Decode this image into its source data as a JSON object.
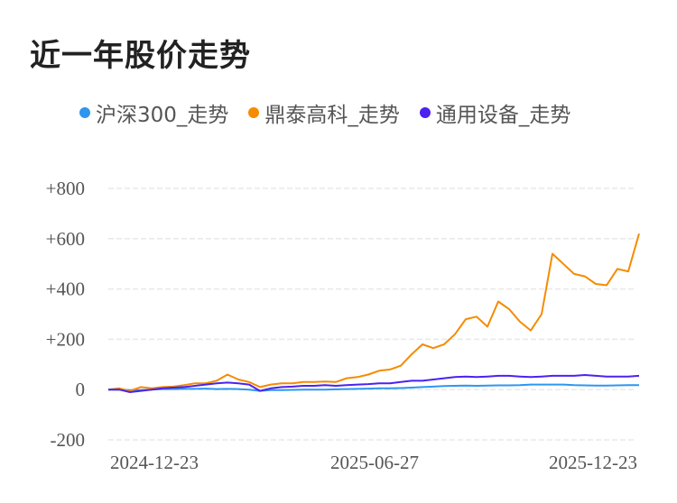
{
  "title": "近一年股价走势",
  "chart_data": {
    "type": "line",
    "title": "近一年股价走势",
    "x_tick_labels": [
      "2024-12-23",
      "2025-06-27",
      "2025-12-23"
    ],
    "y_tick_labels": [
      "+800",
      "+600",
      "+400",
      "+200",
      "0",
      "-200"
    ],
    "y_ticks": [
      800,
      600,
      400,
      200,
      0,
      -200
    ],
    "ylim": [
      -200,
      800
    ],
    "grid": true,
    "legend_position": "top",
    "series": [
      {
        "name": "沪深300_走势",
        "color": "#2e96f0",
        "values": [
          0,
          0,
          -2,
          -2,
          0,
          2,
          2,
          3,
          3,
          4,
          2,
          3,
          2,
          0,
          -5,
          -2,
          -2,
          -1,
          0,
          0,
          0,
          1,
          2,
          3,
          4,
          5,
          5,
          6,
          8,
          10,
          12,
          14,
          15,
          16,
          15,
          16,
          17,
          17,
          18,
          20,
          20,
          20,
          20,
          18,
          17,
          16,
          16,
          17,
          18,
          18
        ]
      },
      {
        "name": "鼎泰高科_走势",
        "color": "#f58b00",
        "values": [
          0,
          5,
          -5,
          10,
          5,
          10,
          12,
          18,
          25,
          25,
          35,
          60,
          40,
          30,
          10,
          20,
          25,
          25,
          30,
          30,
          32,
          30,
          45,
          50,
          60,
          75,
          80,
          95,
          140,
          180,
          165,
          180,
          220,
          280,
          290,
          250,
          350,
          320,
          270,
          235,
          300,
          540,
          500,
          460,
          450,
          420,
          415,
          480,
          470,
          620
        ]
      },
      {
        "name": "通用设备_走势",
        "color": "#4b22f0",
        "values": [
          0,
          0,
          -10,
          -5,
          0,
          5,
          8,
          10,
          15,
          20,
          25,
          28,
          25,
          20,
          -5,
          5,
          10,
          12,
          15,
          15,
          18,
          15,
          18,
          20,
          22,
          25,
          25,
          30,
          35,
          35,
          40,
          45,
          50,
          52,
          50,
          52,
          55,
          55,
          52,
          50,
          52,
          55,
          55,
          55,
          58,
          55,
          52,
          52,
          52,
          55
        ]
      }
    ]
  }
}
